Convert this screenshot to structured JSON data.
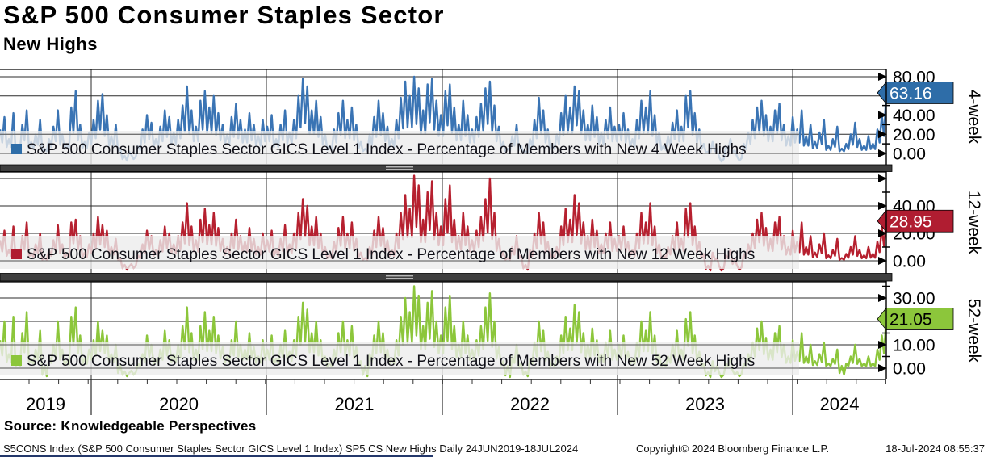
{
  "header": {
    "title": "S&P 500 Consumer Staples Sector",
    "subtitle": "New Highs"
  },
  "source_line": "Source: Knowledgeable Perspectives",
  "footer": {
    "left": "S5CONS Index (S&P 500 Consumer Staples Sector GICS Level 1 Index) SP5 CS New Highs  Daily 24JUN2019-18JUL2024",
    "center": "Copyright© 2024 Bloomberg Finance L.P.",
    "right": "18-Jul-2024 08:55:37"
  },
  "x_axis": {
    "year_labels": [
      "2019",
      "2020",
      "2021",
      "2022",
      "2023",
      "2024"
    ]
  },
  "chart_data": [
    {
      "type": "bar",
      "panel_label": "4-week",
      "legend": "S&P 500 Consumer Staples Sector GICS Level 1 Index - Percentage of Members with New 4 Week Highs",
      "color": "#3a74b4",
      "badge_color": "#2e6da8",
      "badge_text_color": "#ffffff",
      "last_label": "63.16",
      "ylim": [
        0,
        88
      ],
      "y_ticks": [
        {
          "v": 0,
          "label": "0.00"
        },
        {
          "v": 20,
          "label": "20.00"
        },
        {
          "v": 40,
          "label": "40.00"
        },
        {
          "v": 60,
          "label": "60.00"
        },
        {
          "v": 80,
          "label": "80.00"
        }
      ],
      "y_minor_ticks": [
        10,
        30,
        50,
        70
      ],
      "values": [
        25,
        38,
        15,
        42,
        8,
        30,
        45,
        12,
        20,
        35,
        5,
        15,
        28,
        45,
        20,
        10,
        48,
        65,
        30,
        12,
        22,
        35,
        55,
        62,
        40,
        18,
        30,
        5,
        0,
        2,
        0,
        8,
        25,
        40,
        32,
        15,
        28,
        45,
        38,
        22,
        35,
        50,
        70,
        45,
        28,
        55,
        65,
        48,
        60,
        42,
        30,
        20,
        38,
        52,
        35,
        25,
        42,
        30,
        18,
        35,
        28,
        40,
        15,
        30,
        45,
        22,
        35,
        60,
        78,
        70,
        45,
        55,
        38,
        20,
        8,
        25,
        42,
        55,
        35,
        48,
        30,
        12,
        5,
        20,
        38,
        55,
        42,
        28,
        15,
        35,
        58,
        75,
        60,
        80,
        68,
        45,
        72,
        78,
        55,
        40,
        65,
        72,
        48,
        30,
        55,
        40,
        25,
        38,
        52,
        68,
        75,
        50,
        28,
        12,
        5,
        18,
        30,
        8,
        2,
        15,
        35,
        58,
        45,
        25,
        10,
        20,
        42,
        60,
        48,
        70,
        65,
        45,
        30,
        50,
        38,
        22,
        35,
        48,
        28,
        30,
        42,
        25,
        15,
        35,
        55,
        48,
        65,
        40,
        22,
        8,
        18,
        32,
        45,
        28,
        60,
        65,
        42,
        25,
        10,
        2,
        12,
        5,
        0,
        8,
        15,
        3,
        0,
        10,
        22,
        35,
        48,
        55,
        40,
        28,
        45,
        52,
        30,
        18,
        38,
        25,
        45,
        18,
        30,
        12,
        22,
        35,
        8,
        15,
        28,
        5,
        10,
        20,
        32,
        15,
        8,
        18,
        10,
        25,
        40,
        63.16
      ]
    },
    {
      "type": "bar",
      "panel_label": "12-week",
      "legend": "S&P 500 Consumer Staples Sector GICS Level 1 Index - Percentage of Members with New 12 Week Highs",
      "color": "#b6202f",
      "badge_color": "#b01d31",
      "badge_text_color": "#ffffff",
      "last_label": "28.95",
      "ylim": [
        0,
        64
      ],
      "y_ticks": [
        {
          "v": 0,
          "label": "0.00"
        },
        {
          "v": 20,
          "label": "20.00"
        },
        {
          "v": 40,
          "label": "40.00"
        },
        {
          "v": 60,
          "label": ""
        }
      ],
      "y_minor_ticks": [
        10,
        30,
        50
      ],
      "values": [
        15,
        22,
        8,
        25,
        4,
        18,
        28,
        6,
        12,
        20,
        2,
        8,
        15,
        26,
        12,
        5,
        28,
        30,
        18,
        6,
        12,
        20,
        32,
        26,
        22,
        10,
        16,
        2,
        0,
        0,
        0,
        4,
        12,
        22,
        18,
        8,
        15,
        25,
        20,
        12,
        18,
        28,
        42,
        25,
        15,
        30,
        38,
        26,
        35,
        24,
        16,
        10,
        20,
        30,
        18,
        14,
        24,
        16,
        10,
        20,
        15,
        22,
        8,
        16,
        26,
        12,
        20,
        35,
        45,
        40,
        25,
        32,
        20,
        10,
        4,
        14,
        24,
        32,
        20,
        28,
        16,
        6,
        2,
        10,
        22,
        32,
        24,
        15,
        8,
        20,
        35,
        48,
        38,
        62,
        55,
        30,
        50,
        58,
        35,
        25,
        45,
        55,
        30,
        18,
        35,
        25,
        15,
        22,
        32,
        45,
        60,
        35,
        16,
        6,
        2,
        10,
        18,
        4,
        0,
        8,
        20,
        35,
        28,
        14,
        5,
        10,
        25,
        38,
        30,
        48,
        42,
        28,
        18,
        30,
        22,
        12,
        20,
        28,
        16,
        18,
        25,
        14,
        8,
        20,
        35,
        28,
        42,
        25,
        12,
        4,
        10,
        18,
        28,
        16,
        38,
        42,
        25,
        14,
        5,
        0,
        6,
        2,
        0,
        4,
        8,
        1,
        0,
        5,
        12,
        20,
        30,
        35,
        24,
        16,
        28,
        32,
        18,
        10,
        22,
        14,
        28,
        10,
        18,
        6,
        12,
        20,
        4,
        8,
        16,
        2,
        5,
        10,
        18,
        8,
        4,
        10,
        5,
        14,
        24,
        28.95
      ]
    },
    {
      "type": "bar",
      "panel_label": "52-week",
      "legend": "S&P 500 Consumer Staples Sector GICS Level 1 Index - Percentage of Members with New 52 Week Highs",
      "color": "#8cc63b",
      "badge_color": "#8cc63b",
      "badge_text_color": "#000000",
      "last_label": "21.05",
      "ylim": [
        0,
        36
      ],
      "y_ticks": [
        {
          "v": 0,
          "label": "0.00"
        },
        {
          "v": 10,
          "label": "10.00"
        },
        {
          "v": 20,
          "label": "20.00"
        },
        {
          "v": 30,
          "label": "30.00"
        }
      ],
      "y_minor_ticks": [
        5,
        15,
        25,
        35
      ],
      "values": [
        12,
        20,
        6,
        22,
        2,
        15,
        24,
        4,
        8,
        16,
        1,
        5,
        10,
        20,
        8,
        3,
        22,
        26,
        14,
        4,
        8,
        12,
        20,
        16,
        14,
        6,
        10,
        1,
        0,
        0,
        0,
        2,
        6,
        14,
        10,
        4,
        8,
        16,
        12,
        6,
        10,
        18,
        26,
        15,
        8,
        18,
        24,
        16,
        22,
        14,
        9,
        5,
        12,
        20,
        10,
        8,
        15,
        9,
        5,
        12,
        8,
        14,
        4,
        10,
        16,
        7,
        12,
        22,
        28,
        25,
        15,
        20,
        12,
        5,
        2,
        8,
        15,
        20,
        12,
        18,
        9,
        3,
        1,
        6,
        14,
        20,
        15,
        8,
        4,
        12,
        22,
        30,
        24,
        35,
        31,
        18,
        28,
        33,
        20,
        14,
        26,
        31,
        18,
        10,
        20,
        14,
        8,
        12,
        18,
        26,
        32,
        20,
        9,
        3,
        1,
        5,
        10,
        2,
        0,
        4,
        11,
        20,
        16,
        7,
        2,
        5,
        14,
        22,
        17,
        27,
        24,
        15,
        10,
        17,
        12,
        6,
        11,
        16,
        8,
        10,
        14,
        7,
        4,
        11,
        20,
        16,
        24,
        14,
        6,
        2,
        5,
        10,
        16,
        8,
        21,
        24,
        14,
        7,
        2,
        0,
        3,
        1,
        0,
        2,
        4,
        0,
        0,
        2,
        6,
        11,
        17,
        20,
        13,
        8,
        15,
        18,
        10,
        5,
        12,
        7,
        15,
        5,
        10,
        3,
        6,
        11,
        2,
        4,
        8,
        1,
        2,
        5,
        10,
        4,
        2,
        5,
        2,
        8,
        14,
        21.05
      ]
    }
  ]
}
